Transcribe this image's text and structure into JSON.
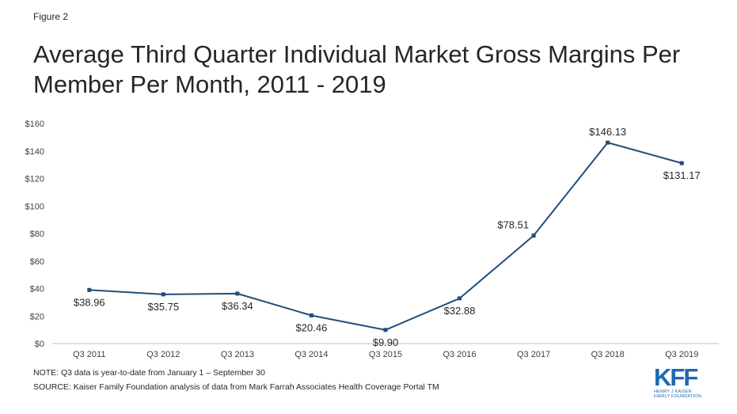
{
  "figure_label": "Figure 2",
  "title": "Average Third Quarter Individual Market Gross Margins Per Member Per Month, 2011 - 2019",
  "notes": {
    "note": "NOTE: Q3 data is year-to-date from January 1 – September 30",
    "source": "SOURCE: Kaiser Family Foundation analysis of data from Mark Farrah Associates Health Coverage Portal TM"
  },
  "logo": {
    "mark": "KFF",
    "line1": "HENRY J KAISER",
    "line2": "FAMILY FOUNDATION"
  },
  "colors": {
    "series": "#1f4e79",
    "axis": "#bfbfbf",
    "logo": "#1b69b4"
  },
  "chart_data": {
    "type": "line",
    "title": "Average Third Quarter Individual Market Gross Margins Per Member Per Month, 2011 - 2019",
    "categories": [
      "Q3 2011",
      "Q3 2012",
      "Q3 2013",
      "Q3 2014",
      "Q3 2015",
      "Q3 2016",
      "Q3 2017",
      "Q3 2018",
      "Q3 2019"
    ],
    "series": [
      {
        "values": [
          38.96,
          35.75,
          36.34,
          20.46,
          9.9,
          32.88,
          78.51,
          146.13,
          131.17
        ],
        "labels": [
          "$38.96",
          "$35.75",
          "$36.34",
          "$20.46",
          "$9.90",
          "$32.88",
          "$78.51",
          "$146.13",
          "$131.17"
        ],
        "label_position": [
          "below",
          "below",
          "below",
          "below",
          "below",
          "below",
          "above",
          "above",
          "below"
        ]
      }
    ],
    "y_ticks": [
      0,
      20,
      40,
      60,
      80,
      100,
      120,
      140,
      160
    ],
    "y_tick_labels": [
      "$0",
      "$20",
      "$40",
      "$60",
      "$80",
      "$100",
      "$120",
      "$140",
      "$160"
    ],
    "ylim": [
      0,
      160
    ],
    "xlabel": "",
    "ylabel": "",
    "grid": false,
    "legend": "none"
  }
}
